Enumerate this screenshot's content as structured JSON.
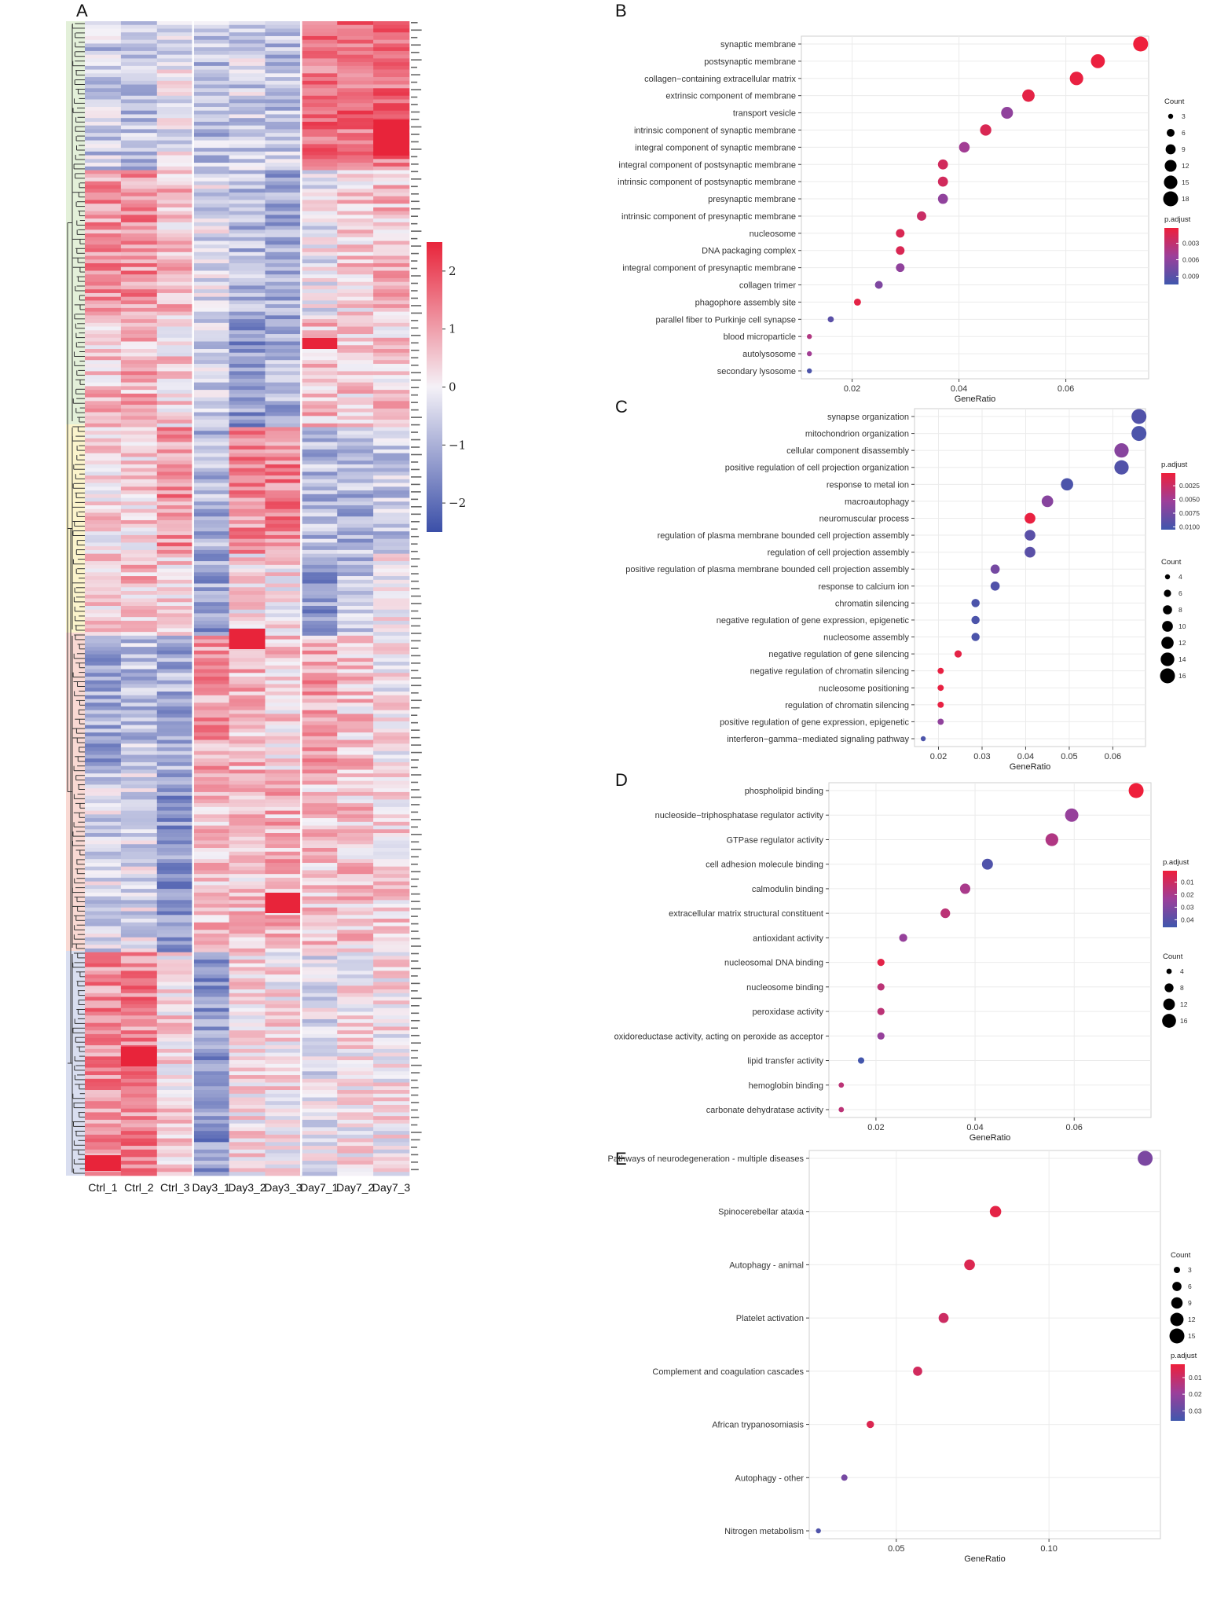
{
  "colors": {
    "low": "#3b4fa8",
    "mid": "#f4f1f7",
    "high": "#e8243a",
    "grid": "#ebebeb",
    "panel_border": "#cfcfcf"
  },
  "chart_data": [
    {
      "panel": "A",
      "type": "heatmap",
      "columns": [
        "Ctrl_1",
        "Ctrl_2",
        "Ctrl_3",
        "Day3_1",
        "Day3_2",
        "Day3_3",
        "Day7_1",
        "Day7_2",
        "Day7_3"
      ],
      "colorbar": {
        "ticks": [
          2,
          1,
          0,
          -1,
          -2
        ],
        "tick_labels": [
          "2",
          "1",
          "0",
          "−1",
          "−2"
        ],
        "range": [
          -2.5,
          2.5
        ]
      },
      "cluster_colors": [
        "#e3f0d9",
        "#fbf4cc",
        "#f9d9d3",
        "#d9def0"
      ],
      "n_rows": 310
    },
    {
      "panel": "B",
      "type": "scatter",
      "xlabel": "GeneRatio",
      "x_ticks": [
        0.02,
        0.04,
        0.06
      ],
      "x_tick_labels": [
        "0.02",
        "0.04",
        "0.06"
      ],
      "xlim": [
        0.0105,
        0.0755
      ],
      "terms": [
        "synaptic membrane",
        "postsynaptic membrane",
        "collagen−containing extracellular matrix",
        "extrinsic component of membrane",
        "transport vesicle",
        "intrinsic component of synaptic membrane",
        "integral component of synaptic membrane",
        "integral component of postsynaptic membrane",
        "intrinsic component of postsynaptic membrane",
        "presynaptic membrane",
        "intrinsic component of presynaptic membrane",
        "nucleosome",
        "DNA packaging complex",
        "integral component of presynaptic membrane",
        "collagen trimer",
        "phagophore assembly site",
        "parallel fiber to Purkinje cell synapse",
        "blood microparticle",
        "autolysosome",
        "secondary lysosome"
      ],
      "gene_ratio": [
        0.074,
        0.066,
        0.062,
        0.053,
        0.049,
        0.045,
        0.041,
        0.037,
        0.037,
        0.037,
        0.033,
        0.029,
        0.029,
        0.029,
        0.025,
        0.021,
        0.016,
        0.012,
        0.012,
        0.012
      ],
      "count": [
        18,
        16,
        15,
        13,
        12,
        11,
        10,
        9,
        9,
        9,
        8,
        7,
        7,
        7,
        6,
        5,
        4,
        3,
        3,
        3
      ],
      "p_adjust": [
        0.0002,
        0.0004,
        0.0005,
        0.0008,
        0.006,
        0.0015,
        0.005,
        0.002,
        0.002,
        0.006,
        0.0025,
        0.0015,
        0.0015,
        0.006,
        0.007,
        0.0008,
        0.009,
        0.004,
        0.005,
        0.0098
      ],
      "legend_count": {
        "title": "Count",
        "values": [
          3,
          6,
          9,
          12,
          15,
          18
        ]
      },
      "legend_padj": {
        "title": "p.adjust",
        "ticks": [
          0.003,
          0.006,
          0.009
        ],
        "tick_labels": [
          "0.003",
          "0.006",
          "0.009"
        ],
        "range": [
          0.0002,
          0.0105
        ]
      }
    },
    {
      "panel": "C",
      "type": "scatter",
      "xlabel": "GeneRatio",
      "x_ticks": [
        0.02,
        0.03,
        0.04,
        0.05,
        0.06
      ],
      "x_tick_labels": [
        "0.02",
        "0.03",
        "0.04",
        "0.05",
        "0.06"
      ],
      "xlim": [
        0.0145,
        0.0675
      ],
      "terms": [
        "synapse organization",
        "mitochondrion organization",
        "cellular component disassembly",
        "positive regulation of cell projection organization",
        "response to metal ion",
        "macroautophagy",
        "neuromuscular process",
        "regulation of plasma membrane bounded cell projection assembly",
        "regulation of cell projection assembly",
        "positive regulation of plasma membrane bounded cell projection assembly",
        "response to calcium ion",
        "chromatin silencing",
        "negative regulation of gene expression, epigenetic",
        "nucleosome assembly",
        "negative regulation of gene silencing",
        "negative regulation of chromatin silencing",
        "nucleosome positioning",
        "regulation of chromatin silencing",
        "positive regulation of gene expression, epigenetic",
        "interferon−gamma−mediated signaling pathway"
      ],
      "gene_ratio": [
        0.066,
        0.066,
        0.062,
        0.062,
        0.0495,
        0.045,
        0.041,
        0.041,
        0.041,
        0.033,
        0.033,
        0.0285,
        0.0285,
        0.0285,
        0.0245,
        0.0205,
        0.0205,
        0.0205,
        0.0205,
        0.0165
      ],
      "count": [
        16,
        16,
        15,
        15,
        12,
        11,
        10,
        10,
        10,
        8,
        8,
        7,
        7,
        7,
        6,
        5,
        5,
        5,
        5,
        4
      ],
      "p_adjust": [
        0.0095,
        0.0098,
        0.0065,
        0.0095,
        0.0098,
        0.0065,
        0.0005,
        0.009,
        0.009,
        0.0075,
        0.0095,
        0.0098,
        0.0098,
        0.0098,
        0.0008,
        0.0006,
        0.0006,
        0.0006,
        0.006,
        0.0098
      ],
      "legend_count": {
        "title": "Count",
        "values": [
          4,
          6,
          8,
          10,
          12,
          14,
          16
        ]
      },
      "legend_padj": {
        "title": "p.adjust",
        "ticks": [
          0.0025,
          0.005,
          0.0075,
          0.01
        ],
        "tick_labels": [
          "0.0025",
          "0.0050",
          "0.0075",
          "0.0100"
        ],
        "range": [
          0.0002,
          0.0105
        ]
      }
    },
    {
      "panel": "D",
      "type": "scatter",
      "xlabel": "GeneRatio",
      "x_ticks": [
        0.02,
        0.04,
        0.06
      ],
      "x_tick_labels": [
        "0.02",
        "0.04",
        "0.06"
      ],
      "xlim": [
        0.0105,
        0.0755
      ],
      "terms": [
        "phospholipid binding",
        "nucleoside−triphosphatase regulator activity",
        "GTPase regulator activity",
        "cell adhesion molecule binding",
        "calmodulin binding",
        "extracellular matrix structural constituent",
        "antioxidant activity",
        "nucleosomal DNA binding",
        "nucleosome binding",
        "peroxidase activity",
        "oxidoreductase activity, acting on peroxide as acceptor",
        "lipid transfer activity",
        "hemoglobin binding",
        "carbonate dehydratase activity"
      ],
      "gene_ratio": [
        0.0725,
        0.0595,
        0.0555,
        0.0425,
        0.038,
        0.034,
        0.0255,
        0.021,
        0.021,
        0.021,
        0.021,
        0.017,
        0.013,
        0.013
      ],
      "count": [
        18,
        15,
        14,
        11,
        10,
        9,
        7,
        6,
        6,
        6,
        6,
        5,
        4,
        4
      ],
      "p_adjust": [
        0.001,
        0.025,
        0.018,
        0.042,
        0.02,
        0.015,
        0.025,
        0.004,
        0.015,
        0.015,
        0.025,
        0.045,
        0.015,
        0.015
      ],
      "legend_count": {
        "title": "Count",
        "values": [
          4,
          8,
          12,
          16
        ]
      },
      "legend_padj": {
        "title": "p.adjust",
        "ticks": [
          0.01,
          0.02,
          0.03,
          0.04
        ],
        "tick_labels": [
          "0.01",
          "0.02",
          "0.03",
          "0.04"
        ],
        "range": [
          0.001,
          0.046
        ]
      }
    },
    {
      "panel": "E",
      "type": "scatter",
      "xlabel": "GeneRatio",
      "x_ticks": [
        0.05,
        0.1
      ],
      "x_tick_labels": [
        "0.05",
        "0.10"
      ],
      "xlim": [
        0.0215,
        0.1365
      ],
      "terms": [
        "Pathways of neurodegeneration - multiple diseases",
        "Spinocerebellar ataxia",
        "Autophagy - animal",
        "Platelet activation",
        "Complement and coagulation cascades",
        "African trypanosomiasis",
        "Autophagy - other",
        "Nitrogen metabolism"
      ],
      "gene_ratio": [
        0.1315,
        0.0825,
        0.074,
        0.0655,
        0.057,
        0.0415,
        0.033,
        0.0245
      ],
      "count": [
        15,
        9,
        8,
        7,
        6,
        4,
        3,
        2
      ],
      "p_adjust": [
        0.025,
        0.004,
        0.006,
        0.009,
        0.008,
        0.006,
        0.026,
        0.033
      ],
      "legend_count": {
        "title": "Count",
        "values": [
          3,
          6,
          9,
          12,
          15
        ]
      },
      "legend_padj": {
        "title": "p.adjust",
        "ticks": [
          0.01,
          0.02,
          0.03
        ],
        "tick_labels": [
          "0.01",
          "0.02",
          "0.03"
        ],
        "range": [
          0.002,
          0.036
        ]
      }
    }
  ]
}
